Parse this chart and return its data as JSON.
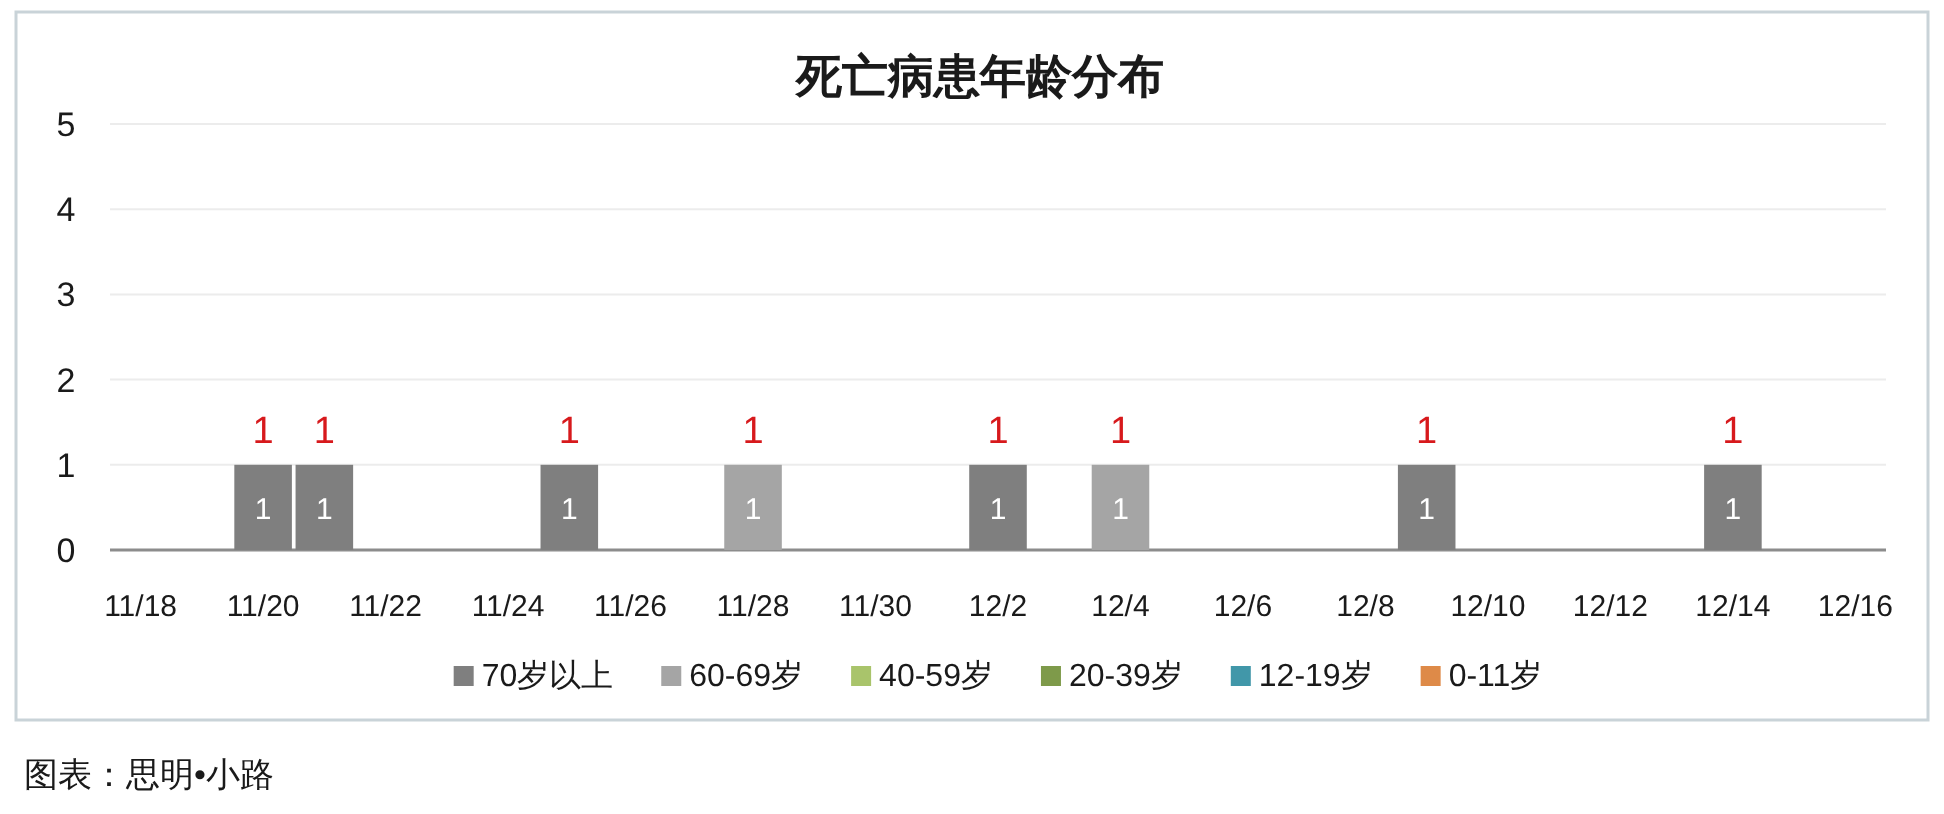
{
  "chart_data": {
    "type": "bar",
    "title": "死亡病患年龄分布",
    "categories": [
      "11/18",
      null,
      "11/20",
      null,
      "11/22",
      null,
      "11/24",
      null,
      "11/26",
      null,
      "11/28",
      null,
      "11/30",
      null,
      "12/2",
      null,
      "12/4",
      null,
      "12/6",
      null,
      "12/8",
      null,
      "12/10",
      null,
      "12/12",
      null,
      "12/14",
      null,
      "12/16"
    ],
    "stacked": true,
    "series": [
      {
        "name": "70岁以上",
        "color": "#7f7f7f",
        "values": [
          null,
          null,
          1,
          1,
          null,
          null,
          null,
          1,
          null,
          null,
          null,
          null,
          null,
          null,
          1,
          null,
          null,
          null,
          null,
          null,
          null,
          1,
          null,
          null,
          null,
          null,
          1,
          null,
          null
        ]
      },
      {
        "name": "60-69岁",
        "color": "#a5a5a5",
        "values": [
          null,
          null,
          null,
          null,
          null,
          null,
          null,
          null,
          null,
          null,
          1,
          null,
          null,
          null,
          null,
          null,
          1,
          null,
          null,
          null,
          null,
          null,
          null,
          null,
          null,
          null,
          null,
          null,
          null
        ]
      },
      {
        "name": "40-59岁",
        "color": "#a9c46b",
        "values": [
          null,
          null,
          null,
          null,
          null,
          null,
          null,
          null,
          null,
          null,
          null,
          null,
          null,
          null,
          null,
          null,
          null,
          null,
          null,
          null,
          null,
          null,
          null,
          null,
          null,
          null,
          null,
          null,
          null
        ]
      },
      {
        "name": "20-39岁",
        "color": "#7e9a4a",
        "values": [
          null,
          null,
          null,
          null,
          null,
          null,
          null,
          null,
          null,
          null,
          null,
          null,
          null,
          null,
          null,
          null,
          null,
          null,
          null,
          null,
          null,
          null,
          null,
          null,
          null,
          null,
          null,
          null,
          null
        ]
      },
      {
        "name": "12-19岁",
        "color": "#4197a9",
        "values": [
          null,
          null,
          null,
          null,
          null,
          null,
          null,
          null,
          null,
          null,
          null,
          null,
          null,
          null,
          null,
          null,
          null,
          null,
          null,
          null,
          null,
          null,
          null,
          null,
          null,
          null,
          null,
          null,
          null
        ]
      },
      {
        "name": "0-11岁",
        "color": "#de8a48",
        "values": [
          null,
          null,
          null,
          null,
          null,
          null,
          null,
          null,
          null,
          null,
          null,
          null,
          null,
          null,
          null,
          null,
          null,
          null,
          null,
          null,
          null,
          null,
          null,
          null,
          null,
          null,
          null,
          null,
          null
        ]
      }
    ],
    "totals": [
      null,
      null,
      "1",
      "1",
      null,
      null,
      null,
      "1",
      null,
      null,
      "1",
      null,
      null,
      null,
      "1",
      null,
      "1",
      null,
      null,
      null,
      null,
      "1",
      null,
      null,
      null,
      null,
      "1",
      null,
      null
    ],
    "data_labels": true,
    "ylim": [
      0,
      5
    ],
    "yticks": [
      0,
      1,
      2,
      3,
      4,
      5
    ],
    "grid": "y",
    "legend": "bottom",
    "annotations": [
      "图表：思明•小路"
    ]
  }
}
